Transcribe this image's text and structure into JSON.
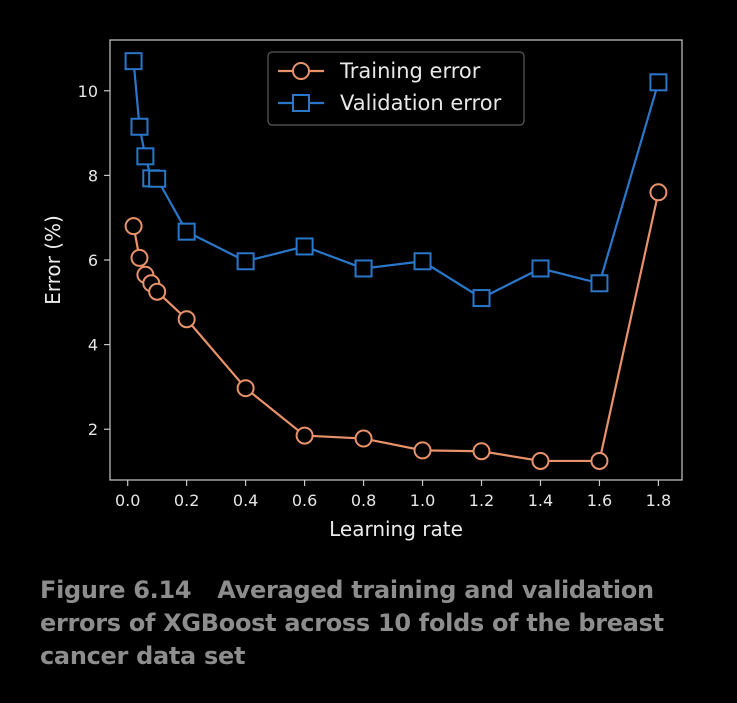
{
  "chart_data": {
    "type": "line",
    "xlabel": "Learning rate",
    "ylabel": "Error (%)",
    "xlim": [
      -0.06,
      1.88
    ],
    "ylim": [
      0.8,
      11.2
    ],
    "x_ticks": [
      "0.0",
      "0.2",
      "0.4",
      "0.6",
      "0.8",
      "1.0",
      "1.2",
      "1.4",
      "1.6",
      "1.8"
    ],
    "y_ticks": [
      "2",
      "4",
      "6",
      "8",
      "10"
    ],
    "grid": false,
    "legend_position": "top-center",
    "series": [
      {
        "name": "Training error",
        "marker": "circle",
        "color": "#e8926a",
        "x": [
          0.02,
          0.04,
          0.06,
          0.08,
          0.1,
          0.2,
          0.4,
          0.6,
          0.8,
          1.0,
          1.2,
          1.4,
          1.6,
          1.8
        ],
        "y": [
          6.8,
          6.05,
          5.65,
          5.45,
          5.25,
          4.6,
          2.97,
          1.85,
          1.78,
          1.5,
          1.48,
          1.25,
          1.25,
          7.6
        ]
      },
      {
        "name": "Validation error",
        "marker": "square",
        "color": "#2a77c9",
        "x": [
          0.02,
          0.04,
          0.06,
          0.08,
          0.1,
          0.2,
          0.4,
          0.6,
          0.8,
          1.0,
          1.2,
          1.4,
          1.6,
          1.8
        ],
        "y": [
          10.7,
          9.15,
          8.45,
          7.93,
          7.92,
          6.67,
          5.97,
          6.32,
          5.8,
          5.97,
          5.1,
          5.8,
          5.45,
          10.2
        ]
      }
    ]
  },
  "caption": {
    "figure_number": "Figure 6.14",
    "text": "Averaged training and validation errors of XGBoost across 10 folds of the breast cancer data set"
  }
}
